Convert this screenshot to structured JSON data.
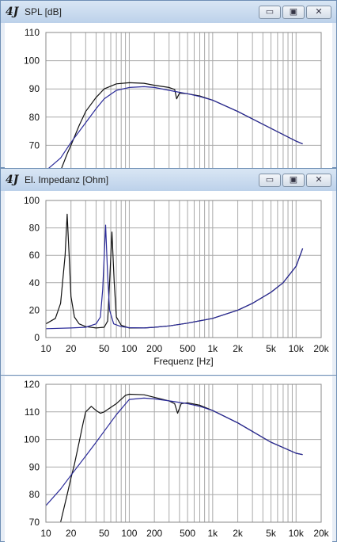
{
  "windows": [
    {
      "title": "SPL [dB]",
      "controls": {
        "minimize": "▭",
        "restore": "▣",
        "close": "✕"
      },
      "chart_data": {
        "type": "line",
        "x_scale": "log",
        "xlim": [
          10,
          20000
        ],
        "ylim": [
          60,
          110
        ],
        "y_ticks": [
          70,
          80,
          90,
          100,
          110
        ],
        "x_ticks": [],
        "xlabel": "",
        "series": [
          {
            "color": "#111111",
            "points": [
              [
                15,
                61
              ],
              [
                18,
                67
              ],
              [
                20,
                70
              ],
              [
                25,
                77
              ],
              [
                30,
                82
              ],
              [
                40,
                87
              ],
              [
                50,
                90
              ],
              [
                70,
                91.8
              ],
              [
                100,
                92.2
              ],
              [
                150,
                92
              ],
              [
                200,
                91.3
              ],
              [
                300,
                90.5
              ],
              [
                350,
                89.8
              ],
              [
                370,
                86.5
              ],
              [
                400,
                88.5
              ],
              [
                500,
                88.3
              ],
              [
                700,
                87.5
              ],
              [
                1000,
                86
              ],
              [
                2000,
                82
              ],
              [
                5000,
                76
              ],
              [
                10000,
                71.5
              ],
              [
                12000,
                70.5
              ]
            ]
          },
          {
            "color": "#2a2a99",
            "points": [
              [
                10,
                61
              ],
              [
                15,
                65.5
              ],
              [
                20,
                71
              ],
              [
                30,
                78
              ],
              [
                40,
                83
              ],
              [
                50,
                86.5
              ],
              [
                70,
                89.5
              ],
              [
                100,
                90.5
              ],
              [
                150,
                90.8
              ],
              [
                200,
                90.5
              ],
              [
                300,
                89.5
              ],
              [
                400,
                88.8
              ],
              [
                500,
                88.3
              ],
              [
                700,
                87.3
              ],
              [
                1000,
                86
              ],
              [
                2000,
                82
              ],
              [
                5000,
                76
              ],
              [
                10000,
                71.5
              ],
              [
                12000,
                70.5
              ]
            ]
          }
        ]
      }
    },
    {
      "title": "El. Impedanz [Ohm]",
      "controls": {
        "minimize": "▭",
        "restore": "▣",
        "close": "✕"
      },
      "chart_data": {
        "type": "line",
        "x_scale": "log",
        "xlim": [
          10,
          20000
        ],
        "ylim": [
          0,
          100
        ],
        "y_ticks": [
          0,
          20,
          40,
          60,
          80,
          100
        ],
        "x_ticks": [
          {
            "v": 10,
            "label": "10"
          },
          {
            "v": 20,
            "label": "20"
          },
          {
            "v": 50,
            "label": "50"
          },
          {
            "v": 100,
            "label": "100"
          },
          {
            "v": 200,
            "label": "200"
          },
          {
            "v": 500,
            "label": "500"
          },
          {
            "v": 1000,
            "label": "1k"
          },
          {
            "v": 2000,
            "label": "2k"
          },
          {
            "v": 5000,
            "label": "5k"
          },
          {
            "v": 10000,
            "label": "10k"
          },
          {
            "v": 20000,
            "label": "20k"
          }
        ],
        "xlabel": "Frequenz [Hz]",
        "series": [
          {
            "color": "#111111",
            "points": [
              [
                10,
                10
              ],
              [
                13,
                14
              ],
              [
                15,
                25
              ],
              [
                17,
                60
              ],
              [
                18,
                90
              ],
              [
                19,
                60
              ],
              [
                20,
                30
              ],
              [
                22,
                15
              ],
              [
                25,
                10
              ],
              [
                30,
                8
              ],
              [
                40,
                7
              ],
              [
                50,
                7.5
              ],
              [
                55,
                12
              ],
              [
                58,
                40
              ],
              [
                62,
                77
              ],
              [
                66,
                40
              ],
              [
                70,
                15
              ],
              [
                80,
                9
              ],
              [
                100,
                7
              ],
              [
                150,
                7
              ],
              [
                200,
                7.5
              ],
              [
                300,
                8.5
              ],
              [
                500,
                10.5
              ],
              [
                1000,
                14
              ],
              [
                2000,
                20
              ],
              [
                3000,
                25
              ],
              [
                5000,
                33
              ],
              [
                7000,
                40
              ],
              [
                10000,
                52
              ],
              [
                12000,
                65
              ]
            ]
          },
          {
            "color": "#2a2a99",
            "points": [
              [
                10,
                6.5
              ],
              [
                20,
                7
              ],
              [
                30,
                7.5
              ],
              [
                40,
                10
              ],
              [
                45,
                15
              ],
              [
                48,
                35
              ],
              [
                52,
                82
              ],
              [
                55,
                45
              ],
              [
                58,
                20
              ],
              [
                65,
                10
              ],
              [
                80,
                8
              ],
              [
                100,
                7.2
              ],
              [
                150,
                7
              ],
              [
                200,
                7.5
              ],
              [
                300,
                8.5
              ],
              [
                500,
                10.5
              ],
              [
                1000,
                14
              ],
              [
                2000,
                20
              ],
              [
                3000,
                25
              ],
              [
                5000,
                33
              ],
              [
                7000,
                40
              ],
              [
                10000,
                52
              ],
              [
                12000,
                65
              ]
            ]
          }
        ]
      }
    },
    {
      "title": "",
      "chart_data": {
        "type": "line",
        "x_scale": "log",
        "xlim": [
          10,
          20000
        ],
        "ylim": [
          70,
          120
        ],
        "y_ticks": [
          70,
          80,
          90,
          100,
          110,
          120
        ],
        "x_ticks": [
          {
            "v": 10,
            "label": "10"
          },
          {
            "v": 20,
            "label": "20"
          },
          {
            "v": 50,
            "label": "50"
          },
          {
            "v": 100,
            "label": "100"
          },
          {
            "v": 200,
            "label": "200"
          },
          {
            "v": 500,
            "label": "500"
          },
          {
            "v": 1000,
            "label": "1k"
          },
          {
            "v": 2000,
            "label": "2k"
          },
          {
            "v": 5000,
            "label": "5k"
          },
          {
            "v": 10000,
            "label": "10k"
          },
          {
            "v": 20000,
            "label": "20k"
          }
        ],
        "xlabel": "",
        "series": [
          {
            "color": "#111111",
            "points": [
              [
                15,
                70
              ],
              [
                18,
                80
              ],
              [
                20,
                86
              ],
              [
                22,
                91
              ],
              [
                25,
                99
              ],
              [
                28,
                106
              ],
              [
                30,
                110
              ],
              [
                35,
                112
              ],
              [
                40,
                110.5
              ],
              [
                45,
                109.5
              ],
              [
                50,
                110
              ],
              [
                70,
                113
              ],
              [
                90,
                116
              ],
              [
                100,
                116.4
              ],
              [
                150,
                116.2
              ],
              [
                200,
                115.3
              ],
              [
                300,
                114
              ],
              [
                350,
                113
              ],
              [
                380,
                109.5
              ],
              [
                420,
                113
              ],
              [
                500,
                113.3
              ],
              [
                700,
                112.4
              ],
              [
                1000,
                110.5
              ],
              [
                2000,
                106
              ],
              [
                5000,
                99
              ],
              [
                10000,
                95
              ],
              [
                12000,
                94.5
              ]
            ]
          },
          {
            "color": "#2a2a99",
            "points": [
              [
                10,
                76
              ],
              [
                15,
                82
              ],
              [
                20,
                87
              ],
              [
                30,
                94
              ],
              [
                40,
                99
              ],
              [
                50,
                103
              ],
              [
                70,
                109
              ],
              [
                100,
                114.5
              ],
              [
                150,
                115
              ],
              [
                200,
                114.7
              ],
              [
                300,
                114
              ],
              [
                500,
                113
              ],
              [
                700,
                112
              ],
              [
                1000,
                110.5
              ],
              [
                2000,
                106
              ],
              [
                5000,
                99
              ],
              [
                10000,
                95
              ],
              [
                12000,
                94.5
              ]
            ]
          }
        ]
      }
    }
  ]
}
